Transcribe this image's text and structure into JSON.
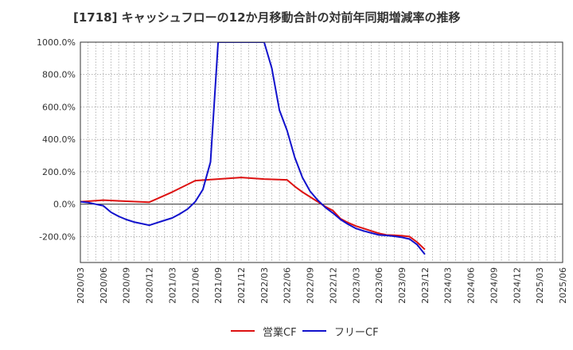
{
  "title": "[1718]  キャッシュフローの12か月移動合計の対前年同期増減率の推移",
  "chart_data": {
    "type": "line",
    "title": "[1718]  キャッシュフローの12か月移動合計の対前年同期増減率の推移",
    "xlabel": "",
    "ylabel": "",
    "ylim": [
      -360,
      1000
    ],
    "yticks": [
      -200,
      0,
      200,
      400,
      600,
      800,
      1000
    ],
    "ytick_labels": [
      "-200.0%",
      "0.0%",
      "200.0%",
      "400.0%",
      "600.0%",
      "800.0%",
      "1000.0%"
    ],
    "x_start": "2020-03",
    "x_end": "2025-06",
    "xtick_labels": [
      "2020/03",
      "2020/06",
      "2020/09",
      "2020/12",
      "2021/03",
      "2021/06",
      "2021/09",
      "2021/12",
      "2022/03",
      "2022/06",
      "2022/09",
      "2022/12",
      "2023/03",
      "2023/06",
      "2023/09",
      "2023/12",
      "2024/03",
      "2024/06",
      "2024/09",
      "2024/12",
      "2025/03",
      "2025/06"
    ],
    "grid": true,
    "legend_position": "bottom",
    "series": [
      {
        "name": "営業CF",
        "color": "#dd1111",
        "points": [
          [
            "2020-03",
            15
          ],
          [
            "2020-06",
            25
          ],
          [
            "2020-09",
            18
          ],
          [
            "2020-12",
            12
          ],
          [
            "2021-03",
            75
          ],
          [
            "2021-06",
            145
          ],
          [
            "2021-09",
            155
          ],
          [
            "2021-12",
            165
          ],
          [
            "2022-03",
            155
          ],
          [
            "2022-06",
            150
          ],
          [
            "2022-07",
            110
          ],
          [
            "2022-08",
            75
          ],
          [
            "2022-09",
            45
          ],
          [
            "2022-10",
            15
          ],
          [
            "2022-11",
            -15
          ],
          [
            "2022-12",
            -40
          ],
          [
            "2023-01",
            -90
          ],
          [
            "2023-02",
            -115
          ],
          [
            "2023-03",
            -135
          ],
          [
            "2023-04",
            -150
          ],
          [
            "2023-05",
            -165
          ],
          [
            "2023-06",
            -180
          ],
          [
            "2023-07",
            -190
          ],
          [
            "2023-08",
            -192
          ],
          [
            "2023-09",
            -195
          ],
          [
            "2023-10",
            -200
          ],
          [
            "2023-11",
            -235
          ],
          [
            "2023-12",
            -280
          ]
        ]
      },
      {
        "name": "フリーCF",
        "color": "#1111cc",
        "points": [
          [
            "2020-03",
            15
          ],
          [
            "2020-04",
            10
          ],
          [
            "2020-05",
            0
          ],
          [
            "2020-06",
            -10
          ],
          [
            "2020-07",
            -50
          ],
          [
            "2020-08",
            -75
          ],
          [
            "2020-09",
            -95
          ],
          [
            "2020-10",
            -110
          ],
          [
            "2020-11",
            -120
          ],
          [
            "2020-12",
            -130
          ],
          [
            "2021-01",
            -115
          ],
          [
            "2021-02",
            -100
          ],
          [
            "2021-03",
            -85
          ],
          [
            "2021-04",
            -60
          ],
          [
            "2021-05",
            -30
          ],
          [
            "2021-06",
            15
          ],
          [
            "2021-07",
            90
          ],
          [
            "2021-08",
            260
          ],
          [
            "2021-09",
            1000
          ],
          [
            "2022-03",
            1000
          ],
          [
            "2022-04",
            840
          ],
          [
            "2022-05",
            580
          ],
          [
            "2022-06",
            455
          ],
          [
            "2022-07",
            290
          ],
          [
            "2022-08",
            165
          ],
          [
            "2022-09",
            80
          ],
          [
            "2022-10",
            25
          ],
          [
            "2022-11",
            -20
          ],
          [
            "2022-12",
            -55
          ],
          [
            "2023-01",
            -95
          ],
          [
            "2023-02",
            -125
          ],
          [
            "2023-03",
            -150
          ],
          [
            "2023-04",
            -165
          ],
          [
            "2023-05",
            -178
          ],
          [
            "2023-06",
            -190
          ],
          [
            "2023-07",
            -193
          ],
          [
            "2023-08",
            -198
          ],
          [
            "2023-09",
            -205
          ],
          [
            "2023-10",
            -215
          ],
          [
            "2023-11",
            -250
          ],
          [
            "2023-12",
            -310
          ]
        ]
      }
    ]
  }
}
